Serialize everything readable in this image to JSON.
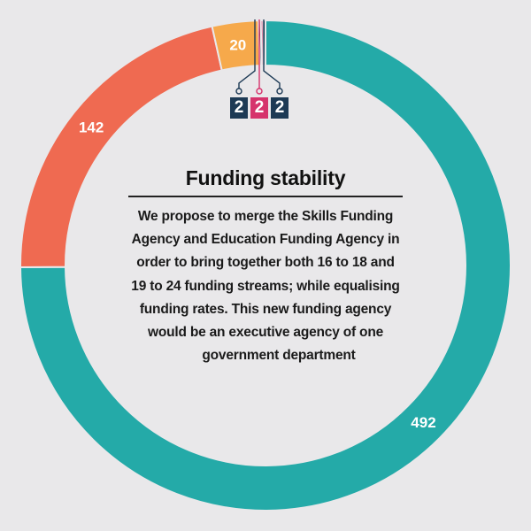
{
  "chart_data": {
    "type": "pie",
    "style": "donut",
    "title": "Funding stability",
    "description": "We propose to merge the Skills Funding Agency and Education Funding Agency in order to bring together both 16 to 18 and 19 to 24 funding streams; while equalising funding rates. This new funding agency would be an executive agency of one government department",
    "description_lines": [
      "We propose to merge the Skills Funding",
      "Agency and Education Funding Agency in",
      "order to bring together both 16 to 18 and",
      "19 to 24 funding streams; while equalising",
      "funding rates. This new funding agency",
      "would be an executive agency of one",
      "government department"
    ],
    "slices": [
      {
        "value": 492,
        "label": "492",
        "color": "#24aaa8"
      },
      {
        "value": 142,
        "label": "142",
        "color": "#ef6a51"
      },
      {
        "value": 20,
        "label": "20",
        "color": "#f6a94b"
      },
      {
        "value": 1,
        "label": "",
        "color": "#1d3a55"
      },
      {
        "value": 1,
        "label": "",
        "color": "#d6336c"
      },
      {
        "value": 1,
        "label": "",
        "color": "#1d3a55"
      }
    ],
    "total": 657,
    "legend": "none"
  },
  "logo": {
    "digits": [
      "2",
      "2",
      "2"
    ],
    "colors": [
      "#1d3a55",
      "#d6336c",
      "#1d3a55"
    ]
  }
}
